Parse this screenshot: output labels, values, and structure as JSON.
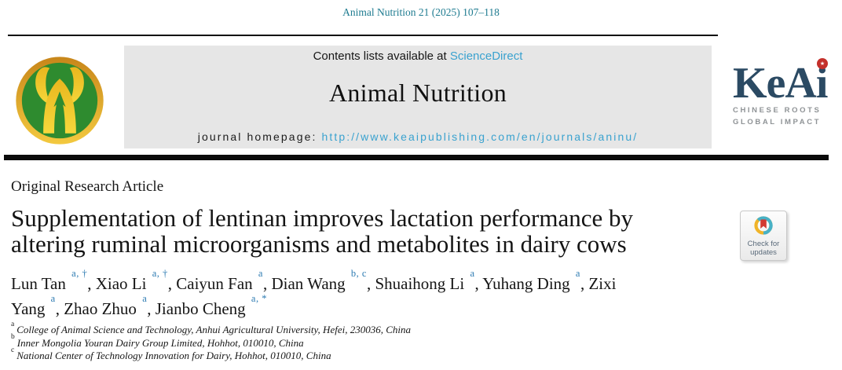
{
  "page": {
    "citation": "Animal Nutrition 21 (2025) 107–118"
  },
  "banner": {
    "contents_prefix": "Contents lists available at ",
    "sciencedirect": "ScienceDirect",
    "journal_name": "Animal Nutrition",
    "homepage_prefix": "journal homepage: ",
    "homepage_url": "http://www.keaipublishing.com/en/journals/aninu/"
  },
  "logos": {
    "journal_logo": "ox-head-emblem-green-gold",
    "keai": {
      "wordmark": "KeAi",
      "tagline_line1": "CHINESE ROOTS",
      "tagline_line2": "GLOBAL IMPACT"
    }
  },
  "icons": {
    "keai_star": "★",
    "crossmark": "circle-with-bookmark"
  },
  "article": {
    "type_label": "Original Research Article",
    "title": "Supplementation of lentinan improves lactation performance by altering ruminal microorganisms and metabolites in dairy cows",
    "authors": [
      {
        "name": "Lun Tan",
        "sup": "a, †"
      },
      {
        "name": "Xiao Li",
        "sup": "a, †"
      },
      {
        "name": "Caiyun Fan",
        "sup": "a"
      },
      {
        "name": "Dian Wang",
        "sup": "b, c"
      },
      {
        "name": "Shuaihong Li",
        "sup": "a"
      },
      {
        "name": "Yuhang Ding",
        "sup": "a"
      },
      {
        "name": "Zixi Yang",
        "sup": "a"
      },
      {
        "name": "Zhao Zhuo",
        "sup": "a"
      },
      {
        "name": "Jianbo Cheng",
        "sup": "a, *"
      }
    ],
    "author_separator": ", ",
    "affiliations": [
      {
        "sup": "a",
        "text": "College of Animal Science and Technology, Anhui Agricultural University, Hefei, 230036, China"
      },
      {
        "sup": "b",
        "text": "Inner Mongolia Youran Dairy Group Limited, Hohhot, 010010, China"
      },
      {
        "sup": "c",
        "text": "National Center of Technology Innovation for Dairy, Hohhot, 010010, China"
      }
    ]
  },
  "badges": {
    "crossmark": {
      "line1": "Check for",
      "line2": "updates"
    }
  },
  "colors": {
    "citation_teal": "#1e7b90",
    "link_blue": "#3aa2cf",
    "superscript_blue": "#2d7bb2",
    "banner_gray": "#e6e6e6",
    "rule_black": "#0b0b0b",
    "keai_navy": "#2b4a63",
    "keai_red": "#c4302b",
    "tagline_gray": "#8f9396",
    "logo_green": "#2e8b2f",
    "logo_gold": "#e9b61e",
    "logo_ring_orange": "#d9951d",
    "crossmark_teal": "#47b1c6",
    "crossmark_yellow": "#f0b429",
    "crossmark_red": "#d23a31",
    "badge_text": "#5a6a7a"
  }
}
